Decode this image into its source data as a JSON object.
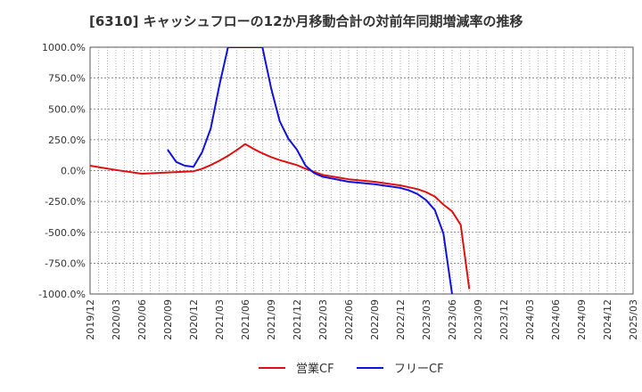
{
  "chart_data": {
    "type": "line",
    "title": "[6310]  キャッシュフローの12か月移動合計の対前年同期増減率の推移",
    "xlabel": "",
    "ylabel": "",
    "ylim": [
      -1000,
      1000
    ],
    "yticks": [
      1000,
      750,
      500,
      250,
      0,
      -250,
      -500,
      -750,
      -1000
    ],
    "ytick_labels": [
      "1000.0%",
      "750.0%",
      "500.0%",
      "250.0%",
      "0.0%",
      "-250.0%",
      "-500.0%",
      "-750.0%",
      "-1000.0%"
    ],
    "xticks": [
      "2019/12",
      "2020/03",
      "2020/06",
      "2020/09",
      "2020/12",
      "2021/03",
      "2021/06",
      "2021/09",
      "2021/12",
      "2022/03",
      "2022/06",
      "2022/09",
      "2022/12",
      "2023/03",
      "2023/06",
      "2023/09",
      "2023/12",
      "2024/03",
      "2024/06",
      "2024/09",
      "2024/12",
      "2025/03"
    ],
    "grid": true,
    "legend_position": "bottom-center",
    "series": [
      {
        "name": "営業CF",
        "color": "#dd1111",
        "points": [
          [
            "2019/12",
            40
          ],
          [
            "2020/03",
            5
          ],
          [
            "2020/06",
            -25
          ],
          [
            "2020/09",
            -15
          ],
          [
            "2020/12",
            -5
          ],
          [
            "2021/01",
            15
          ],
          [
            "2021/02",
            45
          ],
          [
            "2021/03",
            80
          ],
          [
            "2021/04",
            120
          ],
          [
            "2021/05",
            165
          ],
          [
            "2021/06",
            215
          ],
          [
            "2021/07",
            175
          ],
          [
            "2021/08",
            140
          ],
          [
            "2021/09",
            110
          ],
          [
            "2021/10",
            85
          ],
          [
            "2021/11",
            65
          ],
          [
            "2021/12",
            45
          ],
          [
            "2022/01",
            15
          ],
          [
            "2022/02",
            -10
          ],
          [
            "2022/03",
            -35
          ],
          [
            "2022/06",
            -70
          ],
          [
            "2022/09",
            -90
          ],
          [
            "2022/12",
            -120
          ],
          [
            "2023/01",
            -135
          ],
          [
            "2023/02",
            -150
          ],
          [
            "2023/03",
            -175
          ],
          [
            "2023/04",
            -210
          ],
          [
            "2023/05",
            -275
          ],
          [
            "2023/06",
            -330
          ],
          [
            "2023/07",
            -440
          ],
          [
            "2023/08",
            -960
          ]
        ]
      },
      {
        "name": "フリーCF",
        "color": "#1111dd",
        "points": [
          [
            "2020/09",
            170
          ],
          [
            "2020/10",
            70
          ],
          [
            "2020/11",
            40
          ],
          [
            "2020/12",
            30
          ],
          [
            "2021/01",
            150
          ],
          [
            "2021/02",
            340
          ],
          [
            "2021/03",
            690
          ],
          [
            "2021/04",
            1000
          ],
          [
            "2021/08",
            1000
          ],
          [
            "2021/09",
            670
          ],
          [
            "2021/10",
            400
          ],
          [
            "2021/11",
            260
          ],
          [
            "2021/12",
            170
          ],
          [
            "2022/01",
            40
          ],
          [
            "2022/02",
            -20
          ],
          [
            "2022/03",
            -50
          ],
          [
            "2022/06",
            -90
          ],
          [
            "2022/09",
            -110
          ],
          [
            "2022/12",
            -140
          ],
          [
            "2023/01",
            -160
          ],
          [
            "2023/02",
            -190
          ],
          [
            "2023/03",
            -240
          ],
          [
            "2023/04",
            -320
          ],
          [
            "2023/05",
            -510
          ],
          [
            "2023/06",
            -1000
          ]
        ]
      }
    ]
  }
}
